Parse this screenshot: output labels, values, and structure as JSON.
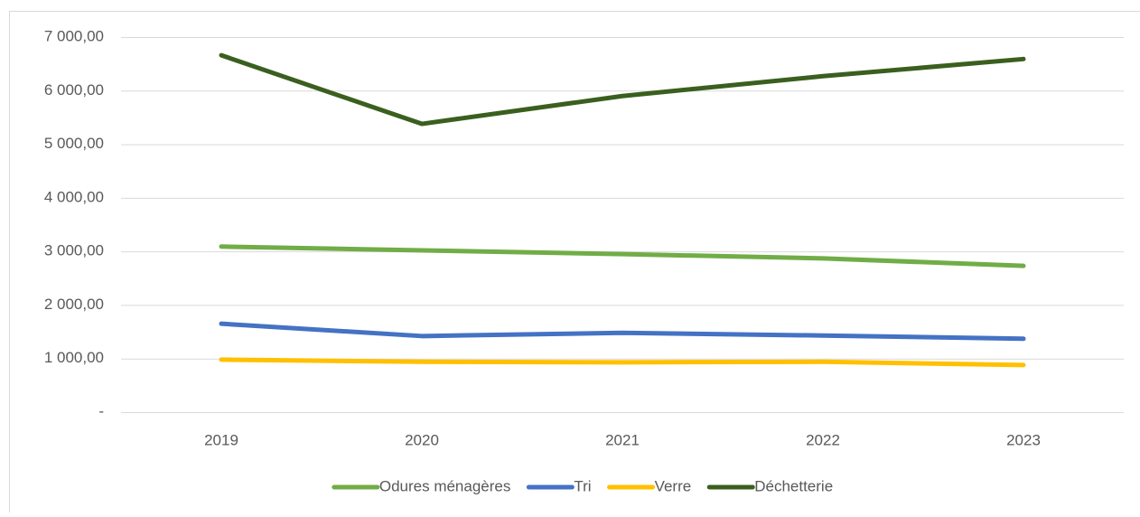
{
  "chart_data": {
    "type": "line",
    "categories": [
      "2019",
      "2020",
      "2021",
      "2022",
      "2023"
    ],
    "series": [
      {
        "name": "Odures ménagères",
        "color": "#70ad47",
        "values": [
          3090,
          3020,
          2950,
          2870,
          2730
        ]
      },
      {
        "name": "Tri",
        "color": "#4472c4",
        "values": [
          1650,
          1420,
          1480,
          1430,
          1370
        ]
      },
      {
        "name": "Verre",
        "color": "#ffc000",
        "values": [
          980,
          940,
          930,
          940,
          880
        ]
      },
      {
        "name": "Déchetterie",
        "color": "#3a5f1e",
        "values": [
          6660,
          5380,
          5900,
          6270,
          6590
        ]
      }
    ],
    "ylim": [
      0,
      7000
    ],
    "yticks": [
      {
        "value": 0,
        "label": "-"
      },
      {
        "value": 1000,
        "label": "1 000,00"
      },
      {
        "value": 2000,
        "label": "2 000,00"
      },
      {
        "value": 3000,
        "label": "3 000,00"
      },
      {
        "value": 4000,
        "label": "4 000,00"
      },
      {
        "value": 5000,
        "label": "5 000,00"
      },
      {
        "value": 6000,
        "label": "6 000,00"
      },
      {
        "value": 7000,
        "label": "7 000,00"
      }
    ],
    "grid": true,
    "legend": "bottom"
  }
}
